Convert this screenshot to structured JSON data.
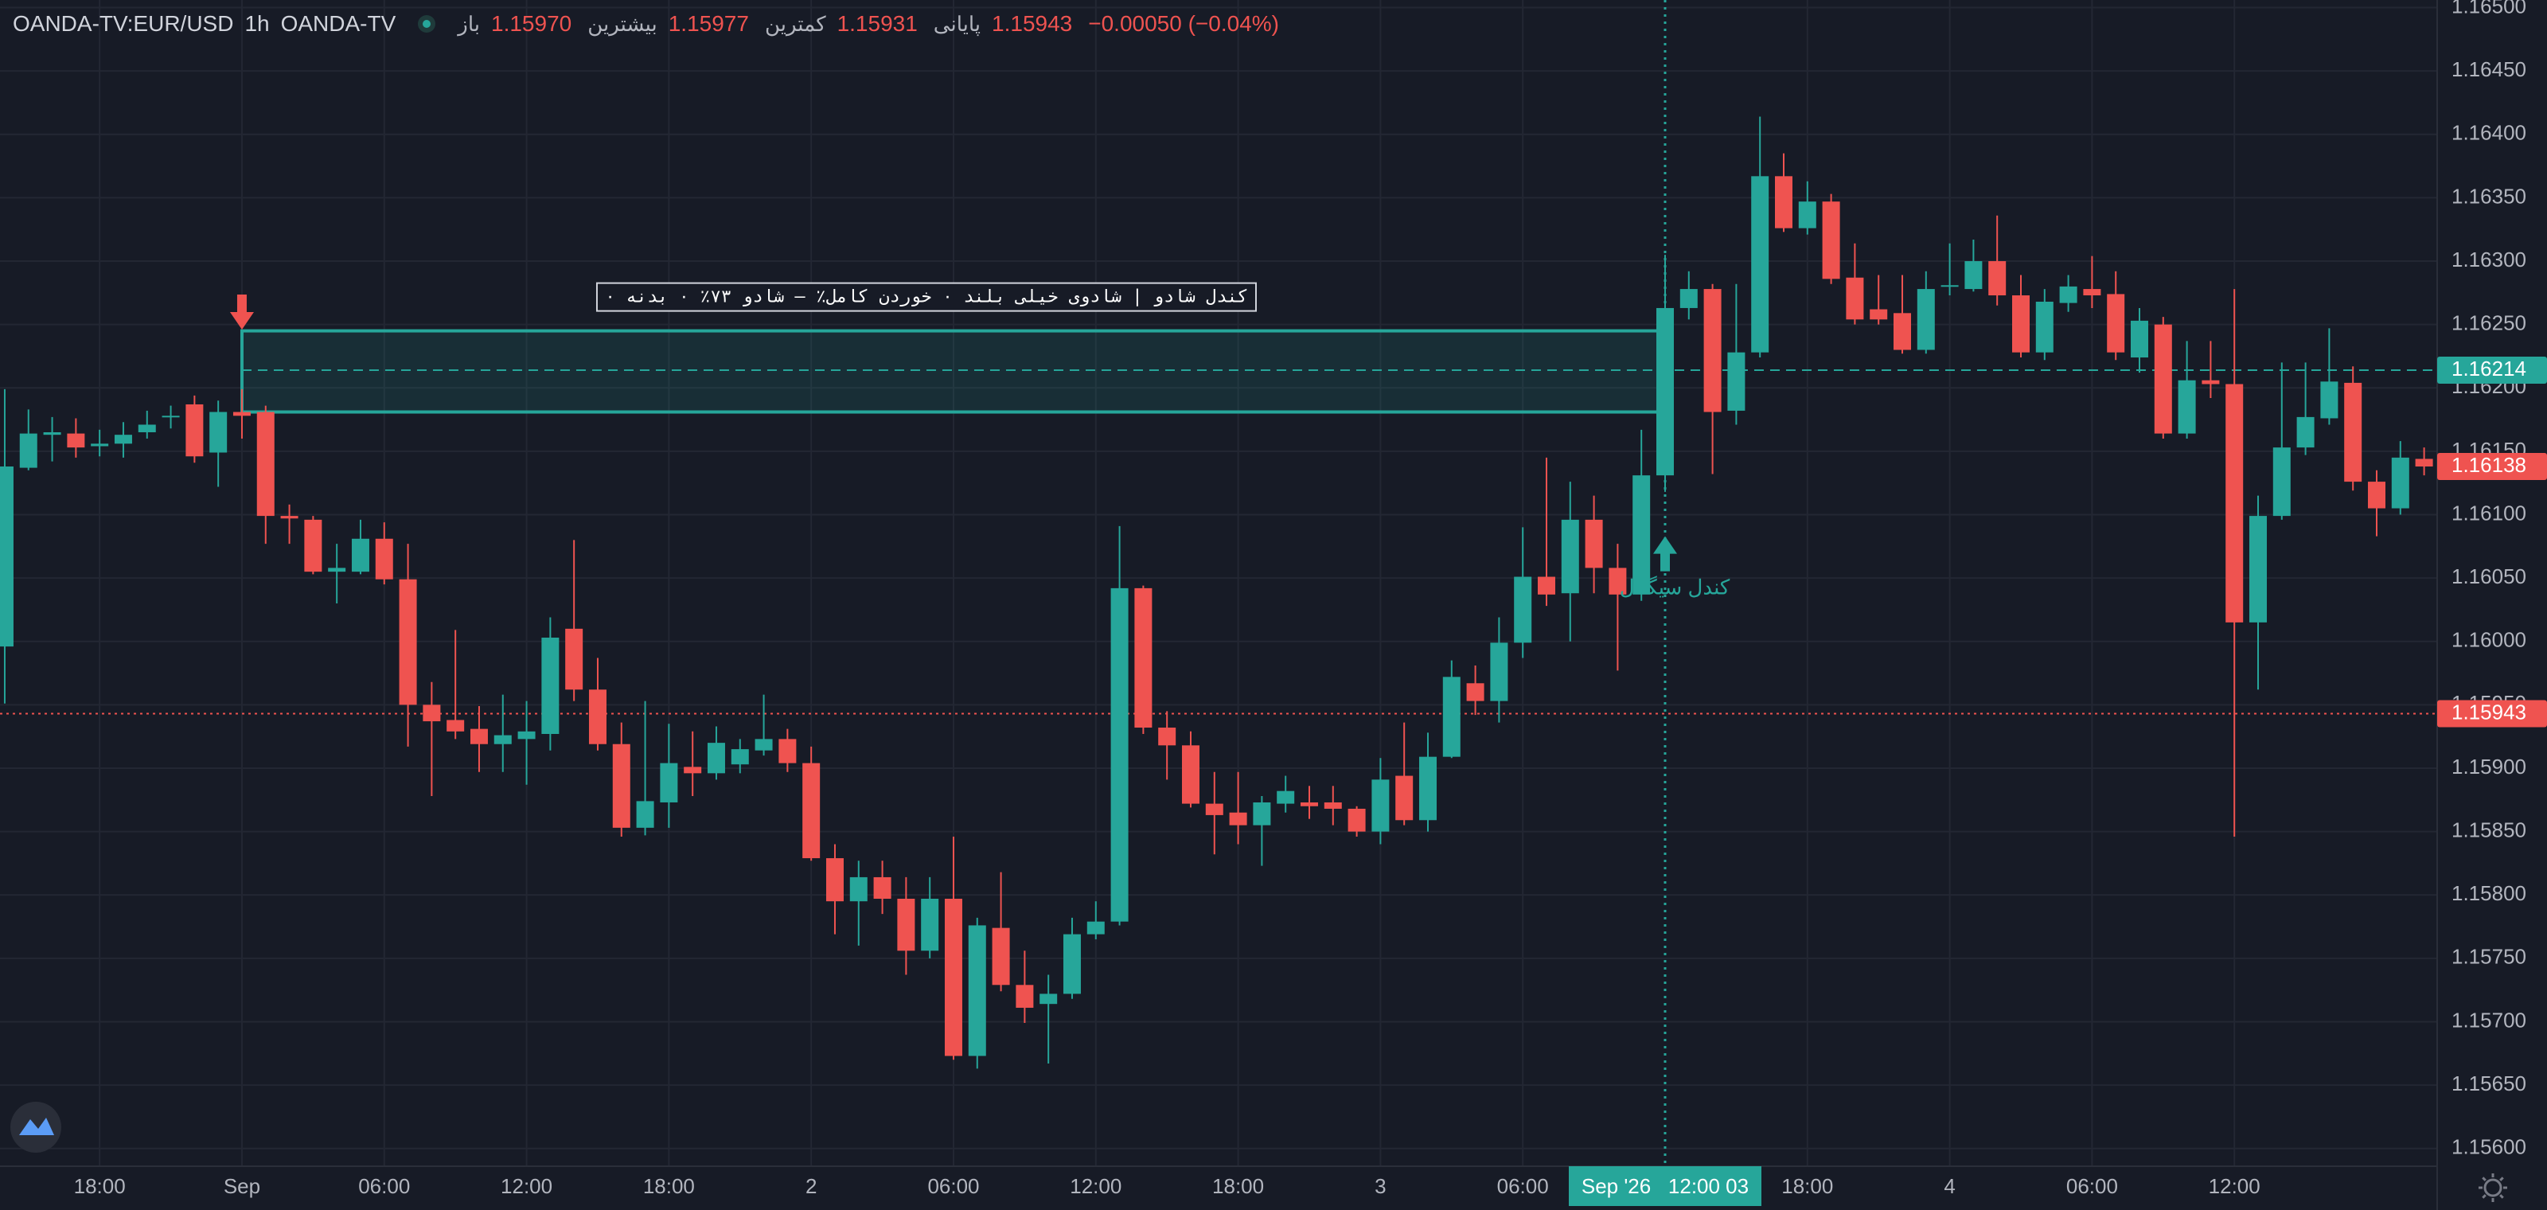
{
  "header": {
    "symbol": "OANDA-TV:EUR/USD",
    "interval": "1h",
    "source": "OANDA-TV",
    "ohlc": [
      {
        "label": "باز",
        "value": "1.15970"
      },
      {
        "label": "بیشترین",
        "value": "1.15977"
      },
      {
        "label": "کمترین",
        "value": "1.15931"
      },
      {
        "label": "پایانی",
        "value": "1.15943"
      }
    ],
    "change": "−0.00050 (−0.04%)"
  },
  "chart_data": {
    "type": "candlestick",
    "up_color": "#26a69a",
    "down_color": "#ef5350",
    "grid": true,
    "open": [
      1.15996,
      1.16137,
      1.16163,
      1.16164,
      1.16154,
      1.16156,
      1.16165,
      1.16177,
      1.16187,
      1.16149,
      1.16181,
      1.16181,
      1.16099,
      1.16096,
      1.16055,
      1.16055,
      1.16081,
      1.16049,
      1.1595,
      1.15938,
      1.15931,
      1.15919,
      1.15923,
      1.15927,
      1.1601,
      1.15962,
      1.15919,
      1.15853,
      1.15873,
      1.15901,
      1.15896,
      1.15903,
      1.15914,
      1.15923,
      1.15904,
      1.15829,
      1.15795,
      1.15814,
      1.15797,
      1.15756,
      1.15797,
      1.15673,
      1.15774,
      1.15729,
      1.15714,
      1.15722,
      1.15769,
      1.15779,
      1.16042,
      1.15932,
      1.15918,
      1.15872,
      1.15865,
      1.15855,
      1.15872,
      1.15873,
      1.15873,
      1.15868,
      1.1585,
      1.15894,
      1.15859,
      1.15909,
      1.15967,
      1.15953,
      1.15999,
      1.16051,
      1.16038,
      1.16096,
      1.16058,
      1.16037,
      1.16131,
      1.16263,
      1.16278,
      1.16182,
      1.16228,
      1.16367,
      1.16326,
      1.16347,
      1.16287,
      1.16262,
      1.16259,
      1.1623,
      1.1628,
      1.16278,
      1.163,
      1.16273,
      1.16228,
      1.16267,
      1.16278,
      1.16274,
      1.16224,
      1.1625,
      1.16164,
      1.16206,
      1.16203,
      1.16015,
      1.16099,
      1.16153,
      1.16176,
      1.16204,
      1.16126,
      1.16105,
      1.16144
    ],
    "high": [
      1.16199,
      1.16183,
      1.16177,
      1.16176,
      1.16167,
      1.16173,
      1.16182,
      1.16186,
      1.16194,
      1.1619,
      1.16199,
      1.16186,
      1.16108,
      1.16099,
      1.16077,
      1.16096,
      1.16094,
      1.16077,
      1.15968,
      1.16009,
      1.15949,
      1.15958,
      1.15953,
      1.16019,
      1.1608,
      1.15987,
      1.15936,
      1.15953,
      1.15935,
      1.15929,
      1.15933,
      1.15923,
      1.15958,
      1.15931,
      1.15917,
      1.1584,
      1.15827,
      1.15827,
      1.15814,
      1.15814,
      1.15846,
      1.15782,
      1.15818,
      1.15756,
      1.15737,
      1.15782,
      1.15795,
      1.16091,
      1.16044,
      1.15945,
      1.15929,
      1.15897,
      1.15897,
      1.15878,
      1.15894,
      1.15886,
      1.15886,
      1.1587,
      1.15908,
      1.15936,
      1.15928,
      1.15985,
      1.15981,
      1.16019,
      1.1609,
      1.16145,
      1.16126,
      1.16115,
      1.16077,
      1.16167,
      1.16305,
      1.16292,
      1.16282,
      1.16282,
      1.16414,
      1.16385,
      1.16363,
      1.16353,
      1.16314,
      1.16289,
      1.16289,
      1.16292,
      1.16314,
      1.16317,
      1.16336,
      1.16289,
      1.16278,
      1.16289,
      1.16304,
      1.16292,
      1.16263,
      1.16256,
      1.16237,
      1.16237,
      1.16278,
      1.16115,
      1.1622,
      1.1622,
      1.16247,
      1.16217,
      1.16135,
      1.16158,
      1.16153
    ],
    "low": [
      1.15951,
      1.16135,
      1.16142,
      1.16145,
      1.16146,
      1.16145,
      1.1616,
      1.16168,
      1.16141,
      1.16122,
      1.1616,
      1.16077,
      1.16077,
      1.16053,
      1.1603,
      1.16053,
      1.16045,
      1.15917,
      1.15878,
      1.15923,
      1.15897,
      1.15897,
      1.15887,
      1.15914,
      1.15953,
      1.15914,
      1.15846,
      1.15847,
      1.15853,
      1.15878,
      1.15891,
      1.15896,
      1.1591,
      1.15897,
      1.15827,
      1.15769,
      1.1576,
      1.15785,
      1.15737,
      1.1575,
      1.1567,
      1.15663,
      1.15724,
      1.15699,
      1.15667,
      1.15718,
      1.15765,
      1.15776,
      1.15927,
      1.15891,
      1.15869,
      1.15832,
      1.1584,
      1.15823,
      1.15865,
      1.1586,
      1.15855,
      1.15846,
      1.1584,
      1.15855,
      1.1585,
      1.15908,
      1.15942,
      1.15936,
      1.15987,
      1.16028,
      1.16,
      1.16038,
      1.15977,
      1.16032,
      1.16118,
      1.16254,
      1.16132,
      1.16171,
      1.16224,
      1.16323,
      1.16321,
      1.16282,
      1.1625,
      1.1625,
      1.16227,
      1.16227,
      1.16273,
      1.16276,
      1.16265,
      1.16224,
      1.16222,
      1.1626,
      1.16263,
      1.16222,
      1.16212,
      1.1616,
      1.1616,
      1.16192,
      1.15846,
      1.15962,
      1.16096,
      1.16147,
      1.16171,
      1.16119,
      1.16083,
      1.161,
      1.16131
    ],
    "close": [
      1.16138,
      1.16164,
      1.16165,
      1.16153,
      1.16156,
      1.16163,
      1.16171,
      1.16178,
      1.16146,
      1.16181,
      1.16178,
      1.16099,
      1.16097,
      1.16055,
      1.16058,
      1.16081,
      1.16049,
      1.1595,
      1.15937,
      1.15929,
      1.15919,
      1.15926,
      1.15929,
      1.16003,
      1.15962,
      1.15919,
      1.15853,
      1.15874,
      1.15904,
      1.15896,
      1.1592,
      1.15915,
      1.15923,
      1.15904,
      1.15829,
      1.15795,
      1.15814,
      1.15797,
      1.15756,
      1.15797,
      1.15673,
      1.15776,
      1.15729,
      1.15711,
      1.15722,
      1.15769,
      1.15779,
      1.16042,
      1.15932,
      1.15918,
      1.15872,
      1.15863,
      1.15855,
      1.15873,
      1.15882,
      1.1587,
      1.15868,
      1.1585,
      1.15891,
      1.15859,
      1.15909,
      1.15972,
      1.15953,
      1.15999,
      1.16051,
      1.16037,
      1.16096,
      1.16058,
      1.16037,
      1.16131,
      1.16263,
      1.16278,
      1.16181,
      1.16228,
      1.16367,
      1.16326,
      1.16347,
      1.16286,
      1.16254,
      1.16254,
      1.1623,
      1.16278,
      1.16281,
      1.163,
      1.16273,
      1.16228,
      1.16268,
      1.1628,
      1.16273,
      1.16228,
      1.16253,
      1.16164,
      1.16206,
      1.16203,
      1.16015,
      1.16099,
      1.16153,
      1.16177,
      1.16205,
      1.16126,
      1.16105,
      1.16145,
      1.16138
    ],
    "xlim": [
      -0.2,
      102.55
    ],
    "xticks": [
      {
        "value": 4,
        "label": "18:00"
      },
      {
        "value": 10,
        "label": "Sep"
      },
      {
        "value": 16,
        "label": "06:00"
      },
      {
        "value": 22,
        "label": "12:00"
      },
      {
        "value": 28,
        "label": "18:00"
      },
      {
        "value": 34,
        "label": "2"
      },
      {
        "value": 40,
        "label": "06:00"
      },
      {
        "value": 46,
        "label": "12:00"
      },
      {
        "value": 52,
        "label": "18:00"
      },
      {
        "value": 58,
        "label": "3"
      },
      {
        "value": 64,
        "label": "06:00"
      },
      {
        "value": 76,
        "label": "18:00"
      },
      {
        "value": 82,
        "label": "4"
      },
      {
        "value": 88,
        "label": "06:00"
      },
      {
        "value": 94,
        "label": "12:00"
      }
    ],
    "ylim": [
      1.15586,
      1.16506
    ],
    "yticks": [
      {
        "value": 1.156,
        "label": "1.15600"
      },
      {
        "value": 1.1565,
        "label": "1.15650"
      },
      {
        "value": 1.157,
        "label": "1.15700"
      },
      {
        "value": 1.1575,
        "label": "1.15750"
      },
      {
        "value": 1.158,
        "label": "1.15800"
      },
      {
        "value": 1.1585,
        "label": "1.15850"
      },
      {
        "value": 1.159,
        "label": "1.15900"
      },
      {
        "value": 1.1595,
        "label": "1.15950"
      },
      {
        "value": 1.16,
        "label": "1.16000"
      },
      {
        "value": 1.1605,
        "label": "1.16050"
      },
      {
        "value": 1.161,
        "label": "1.16100"
      },
      {
        "value": 1.1615,
        "label": "1.16150"
      },
      {
        "value": 1.162,
        "label": "1.16200"
      },
      {
        "value": 1.1625,
        "label": "1.16250"
      },
      {
        "value": 1.163,
        "label": "1.16300"
      },
      {
        "value": 1.1635,
        "label": "1.16350"
      },
      {
        "value": 1.164,
        "label": "1.16400"
      },
      {
        "value": 1.1645,
        "label": "1.16450"
      },
      {
        "value": 1.165,
        "label": "1.16500"
      }
    ],
    "zone": {
      "x": [
        10,
        70
      ],
      "y": [
        1.16181,
        1.16245
      ],
      "color": "#26a69a",
      "label": "کندل شادو | شادوی خیلی بلند ٠ خوردن کامل٪ — شادو ٧٣٪ ٠ بدنه ٠"
    },
    "price_lines": [
      {
        "value": 1.16214,
        "color": "#26a69a",
        "style": "dashed",
        "from": 10
      },
      {
        "value": 1.16138,
        "color": "#ef5350"
      },
      {
        "value": 1.15943,
        "color": "#ef5350",
        "style": "dotted"
      }
    ],
    "markers": [
      {
        "x": 10,
        "price": 1.16246,
        "direction": "down",
        "color": "#ef5350"
      },
      {
        "x": 70,
        "price": 1.16083,
        "direction": "up",
        "color": "#26a69a",
        "label": "کندل سیگنال"
      }
    ],
    "crosshair": {
      "x": 70,
      "label": "Sep '26   12:00 03"
    }
  }
}
